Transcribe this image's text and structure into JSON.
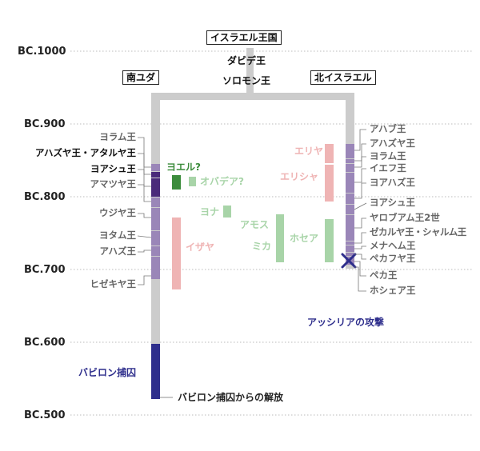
{
  "colors": {
    "trunk_gray": "#cccccc",
    "kings_purple": "#9a86b8",
    "dark_purple": "#6a4a9a",
    "darkest_purple": "#4a2a7a",
    "exile_navy": "#2e2e8c",
    "prophet_green": "#a8d4a8",
    "prophet_red": "#efb4b4",
    "accent_green": "#3c8c3c",
    "gridline": "#bbbbbb"
  },
  "years": [
    "BC.1000",
    "BC.900",
    "BC.800",
    "BC.700",
    "BC.600",
    "BC.500"
  ],
  "kingdom": {
    "united": "イスラエル王国",
    "david": "ダビデ王",
    "solomon": "ソロモン王",
    "south": "南ユダ",
    "north": "北イスラエル"
  },
  "south_kings": [
    "ヨラム王",
    "アハズヤ王・アタルヤ王",
    "ヨアシュ王",
    "アマツヤ王",
    "ウジヤ王",
    "ヨタム王",
    "アハズ王",
    "ヒゼキヤ王"
  ],
  "north_kings": [
    "アハブ王",
    "アハズヤ王",
    "ヨラム王",
    "イエフ王",
    "ヨアハズ王",
    "ヨアシュ王",
    "ヤロブアム王2世",
    "ゼカルヤ王・シャルム王",
    "メナヘム王",
    "ペカフヤ王",
    "ペカ王",
    "ホシェア王"
  ],
  "prophets": {
    "joel": "ヨエル?",
    "obadiah": "オバデア?",
    "jonah": "ヨナ",
    "isaiah": "イザヤ",
    "amos": "アモス",
    "micah": "ミカ",
    "hosea": "ホセア",
    "elijah": "エリヤ",
    "elisha": "エリシャ"
  },
  "events": {
    "assyria": "アッシリアの攻撃",
    "exile": "バビロン捕囚",
    "release": "バビロン捕囚からの解放"
  },
  "icons": {
    "attack": "cross-mark-icon"
  }
}
